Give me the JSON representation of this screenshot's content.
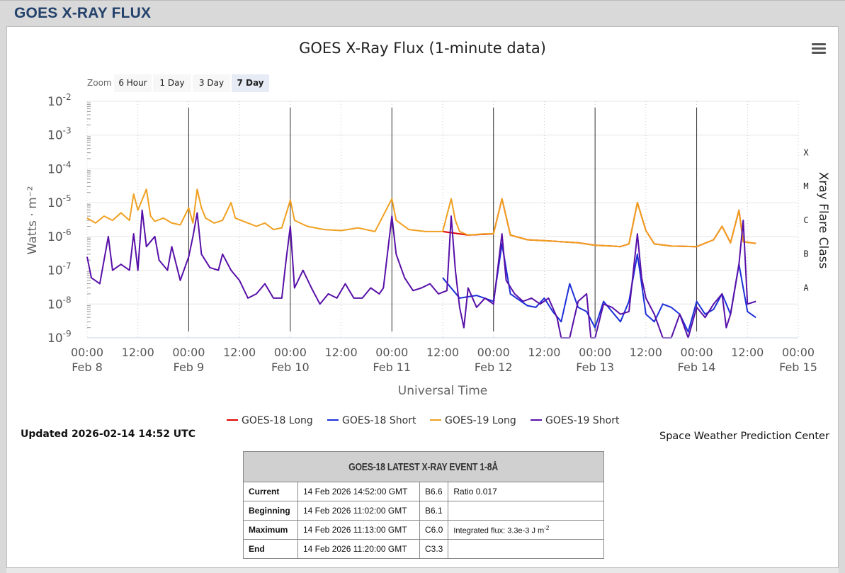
{
  "page": {
    "header_title": "GOES X-RAY FLUX"
  },
  "chart_data": {
    "type": "line",
    "title": "GOES X-Ray Flux (1-minute data)",
    "xlabel": "Universal Time",
    "ylabel": "Watts · m⁻²",
    "right_axis_title": "Xray Flare Class",
    "y_scale": "log",
    "ylim": [
      1e-09,
      0.01
    ],
    "y_ticks": [
      {
        "base": "10",
        "exp": "-2"
      },
      {
        "base": "10",
        "exp": "-3"
      },
      {
        "base": "10",
        "exp": "-4"
      },
      {
        "base": "10",
        "exp": "-5"
      },
      {
        "base": "10",
        "exp": "-6"
      },
      {
        "base": "10",
        "exp": "-7"
      },
      {
        "base": "10",
        "exp": "-8"
      },
      {
        "base": "10",
        "exp": "-9"
      }
    ],
    "flare_classes": [
      {
        "label": "X",
        "value": 0.0001
      },
      {
        "label": "M",
        "value": 1e-05
      },
      {
        "label": "C",
        "value": 1e-06
      },
      {
        "label": "B",
        "value": 1e-07
      },
      {
        "label": "A",
        "value": 1e-08
      }
    ],
    "x_range": [
      "2026-02-08T00:00",
      "2026-02-15T00:00"
    ],
    "x_ticks": [
      {
        "t": 0,
        "time": "00:00",
        "date": "Feb 8"
      },
      {
        "t": 12,
        "time": "12:00",
        "date": ""
      },
      {
        "t": 24,
        "time": "00:00",
        "date": "Feb 9"
      },
      {
        "t": 36,
        "time": "12:00",
        "date": ""
      },
      {
        "t": 48,
        "time": "00:00",
        "date": "Feb 10"
      },
      {
        "t": 60,
        "time": "12:00",
        "date": ""
      },
      {
        "t": 72,
        "time": "00:00",
        "date": "Feb 11"
      },
      {
        "t": 84,
        "time": "12:00",
        "date": ""
      },
      {
        "t": 96,
        "time": "00:00",
        "date": "Feb 12"
      },
      {
        "t": 108,
        "time": "12:00",
        "date": ""
      },
      {
        "t": 120,
        "time": "00:00",
        "date": "Feb 13"
      },
      {
        "t": 132,
        "time": "12:00",
        "date": ""
      },
      {
        "t": 144,
        "time": "00:00",
        "date": "Feb 14"
      },
      {
        "t": 156,
        "time": "12:00",
        "date": ""
      },
      {
        "t": 168,
        "time": "00:00",
        "date": "Feb 15"
      }
    ],
    "day_lines_hours": [
      24,
      48,
      72,
      96,
      120,
      144
    ],
    "series": [
      {
        "name": "GOES-18 Long",
        "color": "#e00000",
        "points": [
          [
            84,
            1.4e-06
          ],
          [
            90,
            1.1e-06
          ],
          [
            96,
            1.2e-06
          ],
          [
            98,
            1.3e-05
          ],
          [
            100,
            1.1e-06
          ],
          [
            104,
            8e-07
          ],
          [
            108,
            7.5e-07
          ],
          [
            112,
            7e-07
          ],
          [
            116,
            6.5e-07
          ],
          [
            120,
            5.5e-07
          ],
          [
            124,
            5.2e-07
          ],
          [
            126,
            5e-07
          ],
          [
            128,
            6e-07
          ],
          [
            130,
            1e-05
          ],
          [
            132,
            1.5e-06
          ],
          [
            134,
            6e-07
          ],
          [
            138,
            5.2e-07
          ],
          [
            144,
            5e-07
          ],
          [
            148,
            8e-07
          ],
          [
            150,
            2e-06
          ],
          [
            152,
            6.5e-07
          ],
          [
            154,
            6e-06
          ],
          [
            155,
            7e-07
          ],
          [
            158,
            6.2e-07
          ]
        ]
      },
      {
        "name": "GOES-18 Short",
        "color": "#1c2fd8",
        "points": [
          [
            84,
            6e-08
          ],
          [
            88,
            1.5e-08
          ],
          [
            92,
            1.8e-08
          ],
          [
            96,
            1.2e-08
          ],
          [
            98,
            6e-07
          ],
          [
            100,
            2e-08
          ],
          [
            104,
            9e-09
          ],
          [
            106,
            8e-09
          ],
          [
            108,
            1.5e-08
          ],
          [
            110,
            6e-09
          ],
          [
            112,
            3e-09
          ],
          [
            114,
            4e-08
          ],
          [
            116,
            8e-09
          ],
          [
            118,
            6e-09
          ],
          [
            120,
            2e-09
          ],
          [
            122,
            1.2e-08
          ],
          [
            124,
            6e-09
          ],
          [
            126,
            3e-09
          ],
          [
            128,
            1.2e-08
          ],
          [
            130,
            3e-07
          ],
          [
            132,
            5e-09
          ],
          [
            134,
            3e-09
          ],
          [
            136,
            1e-08
          ],
          [
            138,
            8e-09
          ],
          [
            140,
            5e-09
          ],
          [
            142,
            1.5e-09
          ],
          [
            144,
            1.2e-08
          ],
          [
            146,
            5e-09
          ],
          [
            148,
            7e-09
          ],
          [
            150,
            2e-08
          ],
          [
            152,
            5e-09
          ],
          [
            154,
            1.5e-07
          ],
          [
            156,
            6e-09
          ],
          [
            158,
            4e-09
          ]
        ]
      },
      {
        "name": "GOES-19 Long",
        "color": "#f0a020",
        "points": [
          [
            0,
            3.5e-06
          ],
          [
            2,
            2.5e-06
          ],
          [
            4,
            4e-06
          ],
          [
            6,
            3e-06
          ],
          [
            8,
            5e-06
          ],
          [
            10,
            3e-06
          ],
          [
            11,
            1.8e-05
          ],
          [
            12,
            6e-06
          ],
          [
            14,
            2.5e-05
          ],
          [
            15,
            4e-06
          ],
          [
            16,
            2.8e-06
          ],
          [
            18,
            3.5e-06
          ],
          [
            20,
            2.5e-06
          ],
          [
            22,
            2.2e-06
          ],
          [
            24,
            7e-06
          ],
          [
            25,
            2.5e-06
          ],
          [
            26,
            2.5e-05
          ],
          [
            27,
            7e-06
          ],
          [
            28,
            3.5e-06
          ],
          [
            30,
            2.5e-06
          ],
          [
            32,
            3e-06
          ],
          [
            34,
            1e-05
          ],
          [
            35,
            3.5e-06
          ],
          [
            38,
            2.5e-06
          ],
          [
            40,
            2e-06
          ],
          [
            42,
            2.5e-06
          ],
          [
            44,
            1.6e-06
          ],
          [
            46,
            1.8e-06
          ],
          [
            48,
            1.2e-05
          ],
          [
            49,
            3e-06
          ],
          [
            52,
            2e-06
          ],
          [
            56,
            1.6e-06
          ],
          [
            60,
            1.5e-06
          ],
          [
            64,
            1.8e-06
          ],
          [
            68,
            1.4e-06
          ],
          [
            72,
            1.3e-05
          ],
          [
            73,
            3e-06
          ],
          [
            76,
            1.6e-06
          ],
          [
            80,
            1.4e-06
          ],
          [
            84,
            1.4e-06
          ],
          [
            86,
            1.3e-05
          ],
          [
            87,
            3e-06
          ],
          [
            88,
            1.4e-06
          ],
          [
            90,
            1.1e-06
          ],
          [
            94,
            1.2e-06
          ],
          [
            96,
            1.2e-06
          ],
          [
            98,
            1.3e-05
          ],
          [
            100,
            1.1e-06
          ],
          [
            104,
            8e-07
          ],
          [
            108,
            7.5e-07
          ],
          [
            112,
            7e-07
          ],
          [
            116,
            6.5e-07
          ],
          [
            120,
            5.5e-07
          ],
          [
            124,
            5.2e-07
          ],
          [
            126,
            5e-07
          ],
          [
            128,
            6e-07
          ],
          [
            130,
            1e-05
          ],
          [
            132,
            1.5e-06
          ],
          [
            134,
            6e-07
          ],
          [
            138,
            5.2e-07
          ],
          [
            144,
            5e-07
          ],
          [
            148,
            8e-07
          ],
          [
            150,
            2e-06
          ],
          [
            152,
            6.5e-07
          ],
          [
            154,
            6e-06
          ],
          [
            155,
            7e-07
          ],
          [
            158,
            6.2e-07
          ]
        ]
      },
      {
        "name": "GOES-19 Short",
        "color": "#5810a8",
        "points": [
          [
            0,
            2.5e-07
          ],
          [
            1,
            6e-08
          ],
          [
            3,
            4e-08
          ],
          [
            5,
            1e-06
          ],
          [
            6,
            1e-07
          ],
          [
            8,
            1.5e-07
          ],
          [
            10,
            1e-07
          ],
          [
            11,
            1.2e-06
          ],
          [
            12,
            1e-07
          ],
          [
            13,
            6e-06
          ],
          [
            14,
            5e-07
          ],
          [
            16,
            1e-06
          ],
          [
            17,
            2e-07
          ],
          [
            19,
            1e-07
          ],
          [
            20,
            5e-07
          ],
          [
            22,
            5e-08
          ],
          [
            24,
            2.5e-07
          ],
          [
            25,
            1e-06
          ],
          [
            26,
            5e-06
          ],
          [
            27,
            3e-07
          ],
          [
            29,
            1.2e-07
          ],
          [
            31,
            1e-07
          ],
          [
            32,
            3e-07
          ],
          [
            34,
            1e-07
          ],
          [
            36,
            5e-08
          ],
          [
            38,
            1.5e-08
          ],
          [
            40,
            2e-08
          ],
          [
            42,
            4e-08
          ],
          [
            44,
            1.5e-08
          ],
          [
            46,
            1.5e-08
          ],
          [
            47,
            2e-07
          ],
          [
            48,
            2e-06
          ],
          [
            49,
            3e-08
          ],
          [
            51,
            1e-07
          ],
          [
            53,
            3e-08
          ],
          [
            55,
            1e-08
          ],
          [
            57,
            2e-08
          ],
          [
            59,
            1.5e-08
          ],
          [
            61,
            4e-08
          ],
          [
            63,
            1.5e-08
          ],
          [
            65,
            1.5e-08
          ],
          [
            67,
            3e-08
          ],
          [
            69,
            2e-08
          ],
          [
            70,
            3e-08
          ],
          [
            72,
            4e-06
          ],
          [
            73,
            3e-07
          ],
          [
            75,
            6e-08
          ],
          [
            77,
            2.5e-08
          ],
          [
            79,
            3e-08
          ],
          [
            81,
            4e-08
          ],
          [
            83,
            2e-08
          ],
          [
            85,
            2.5e-08
          ],
          [
            86,
            4e-06
          ],
          [
            87,
            1e-07
          ],
          [
            88,
            8e-09
          ],
          [
            89,
            2e-09
          ],
          [
            90,
            3e-08
          ],
          [
            92,
            8e-09
          ],
          [
            94,
            1.5e-08
          ],
          [
            96,
            1e-08
          ],
          [
            98,
            1.2e-06
          ],
          [
            99,
            5e-08
          ],
          [
            101,
            2e-08
          ],
          [
            103,
            1.2e-08
          ],
          [
            105,
            1.5e-08
          ],
          [
            107,
            1e-08
          ],
          [
            109,
            1.5e-08
          ],
          [
            111,
            4e-09
          ],
          [
            112,
            1e-09
          ],
          [
            114,
            1e-09
          ],
          [
            116,
            1.2e-08
          ],
          [
            118,
            2e-08
          ],
          [
            119,
            1e-09
          ],
          [
            120,
            1e-09
          ],
          [
            122,
            1e-08
          ],
          [
            124,
            8e-09
          ],
          [
            126,
            5e-09
          ],
          [
            128,
            6e-09
          ],
          [
            130,
            1.2e-06
          ],
          [
            131,
            6e-08
          ],
          [
            132,
            1.5e-08
          ],
          [
            134,
            5e-09
          ],
          [
            136,
            1e-09
          ],
          [
            138,
            1e-09
          ],
          [
            140,
            5e-09
          ],
          [
            142,
            1e-09
          ],
          [
            144,
            8e-09
          ],
          [
            146,
            4e-09
          ],
          [
            148,
            1e-08
          ],
          [
            150,
            2e-08
          ],
          [
            151,
            2e-09
          ],
          [
            152,
            5e-09
          ],
          [
            154,
            1.5e-07
          ],
          [
            155,
            3e-06
          ],
          [
            156,
            1e-08
          ],
          [
            158,
            1.2e-08
          ]
        ]
      }
    ]
  },
  "zoom": {
    "label": "Zoom",
    "buttons": [
      "6 Hour",
      "1 Day",
      "3 Day",
      "7 Day"
    ],
    "selected": "7 Day"
  },
  "legend": [
    {
      "name": "GOES-18 Long",
      "color": "#e00000"
    },
    {
      "name": "GOES-18 Short",
      "color": "#1c2fd8"
    },
    {
      "name": "GOES-19 Long",
      "color": "#f0a020"
    },
    {
      "name": "GOES-19 Short",
      "color": "#5810a8"
    }
  ],
  "updated": "Updated 2026-02-14 14:52 UTC",
  "credit": "Space Weather Prediction Center",
  "event_table": {
    "title": "GOES-18 LATEST X-RAY EVENT 1-8Å",
    "rows": [
      {
        "label": "Current",
        "datetime": "14 Feb 2026 14:52:00 GMT",
        "class": "B6.6",
        "note": "Ratio 0.017",
        "note_sup": ""
      },
      {
        "label": "Beginning",
        "datetime": "14 Feb 2026 11:02:00 GMT",
        "class": "B6.1",
        "note": "",
        "note_sup": ""
      },
      {
        "label": "Maximum",
        "datetime": "14 Feb 2026 11:13:00 GMT",
        "class": "C6.0",
        "note": "Integrated flux: 3.3e-3 J m",
        "note_sup": "-2"
      },
      {
        "label": "End",
        "datetime": "14 Feb 2026 11:20:00 GMT",
        "class": "C3.3",
        "note": "",
        "note_sup": ""
      }
    ]
  }
}
